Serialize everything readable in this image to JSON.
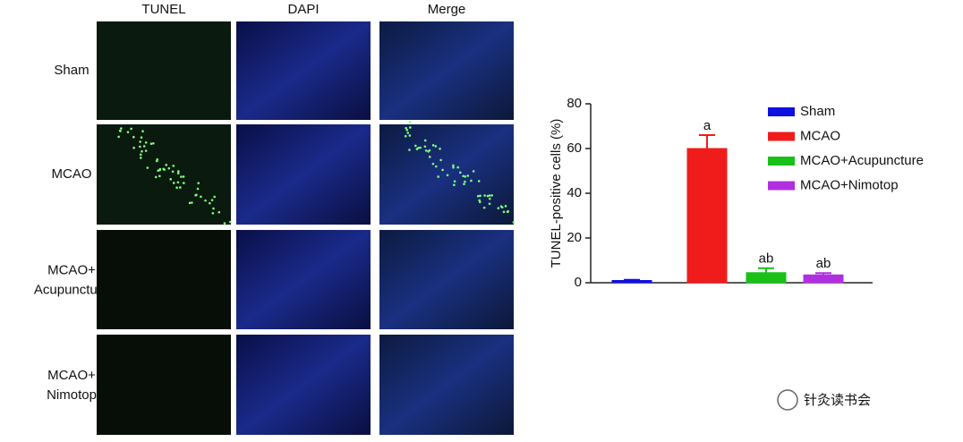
{
  "panels": {
    "columns": [
      "TUNEL",
      "DAPI",
      "Merge"
    ],
    "rows": [
      "Sham",
      "MCAO",
      "MCAO+\nAcupuncture",
      "MCAO+\nNimotop"
    ]
  },
  "chart_data": {
    "type": "bar",
    "y_label": "TUNEL-positive cells (%)",
    "series": [
      {
        "name": "Sham",
        "color": "#1010e0",
        "values": [
          1
        ],
        "errors": [
          0.3
        ]
      },
      {
        "name": "MCAO",
        "color": "#f01c1c",
        "values": [
          60
        ],
        "errors": [
          6
        ],
        "annotation": "a"
      },
      {
        "name": "MCAO+Acupuncture",
        "color": "#18c018",
        "values": [
          4.5
        ],
        "errors": [
          2
        ],
        "annotation": "ab"
      },
      {
        "name": "MCAO+Nimotop",
        "color": "#b030e0",
        "values": [
          3.5
        ],
        "errors": [
          0.8
        ],
        "annotation": "ab"
      }
    ],
    "ylim": [
      0,
      80
    ],
    "yticks": [
      0,
      20,
      40,
      60,
      80
    ]
  },
  "watermark": "针灸读书会"
}
